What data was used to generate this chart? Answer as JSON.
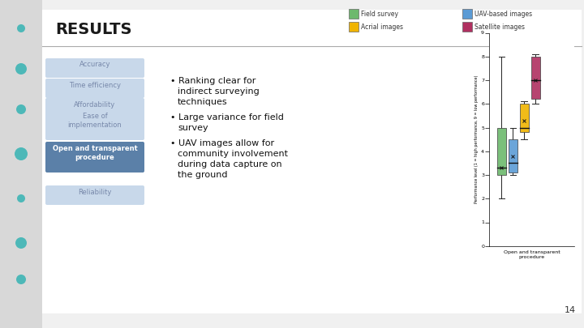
{
  "title": "RESULTS",
  "legend_items": [
    {
      "label": "Field survey",
      "color": "#6db96d"
    },
    {
      "label": "UAV-based images",
      "color": "#5b9bd5"
    },
    {
      "label": "Acrial images",
      "color": "#f0b400"
    },
    {
      "label": "Satellite images",
      "color": "#b03060"
    }
  ],
  "category_label": "Open and transparent\nprocedure",
  "ylabel": "Performance level (1 = high performance, 9 = low performance)",
  "ylim": [
    0,
    9
  ],
  "yticks": [
    0,
    1,
    2,
    3,
    4,
    5,
    6,
    7,
    8,
    9
  ],
  "boxes": [
    {
      "label": "Field survey",
      "color": "#6db96d",
      "whislo": 2.0,
      "q1": 3.0,
      "med": 3.3,
      "mean": 3.3,
      "q3": 5.0,
      "whishi": 8.0
    },
    {
      "label": "UAV-based images",
      "color": "#5b9bd5",
      "whislo": 3.0,
      "q1": 3.1,
      "med": 3.5,
      "mean": 3.8,
      "q3": 4.5,
      "whishi": 5.0
    },
    {
      "label": "Acrial images",
      "color": "#f0b400",
      "whislo": 4.5,
      "q1": 4.8,
      "med": 5.0,
      "mean": 5.3,
      "q3": 6.0,
      "whishi": 6.1
    },
    {
      "label": "Satellite images",
      "color": "#b03060",
      "whislo": 6.0,
      "q1": 6.2,
      "med": 7.0,
      "mean": 7.0,
      "q3": 8.0,
      "whishi": 8.1
    }
  ],
  "bullet_points": [
    "Ranking clear for\nindirect surveying\ntechniques",
    "Large variance for field\nsurvey",
    "UAV images allow for\ncommunity involvement\nduring data capture on\nthe ground"
  ],
  "sidebar_labels": [
    "Accuracy",
    "Time efficiency",
    "Affordability",
    "Ease of\nimplementation",
    "Open and transparent\nprocedure",
    "Reliability"
  ],
  "page_number": "14"
}
